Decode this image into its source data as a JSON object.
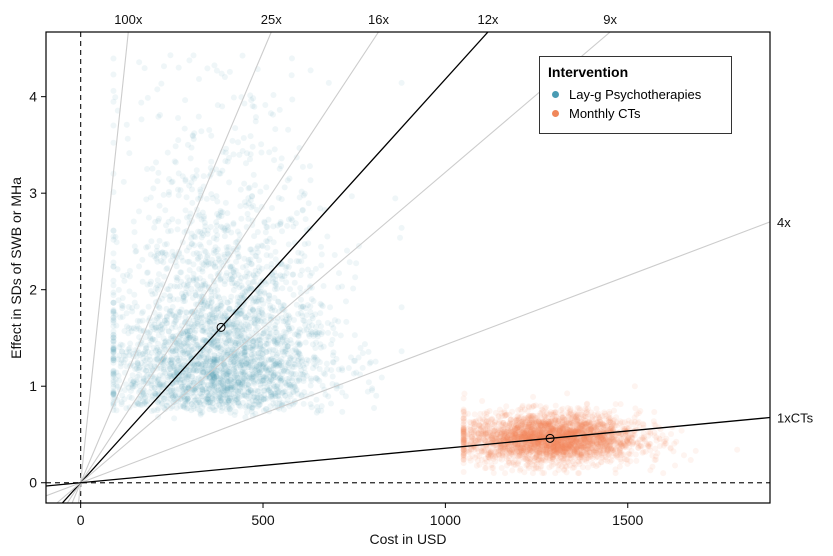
{
  "chart_data": {
    "type": "scatter",
    "xlabel": "Cost in USD",
    "ylabel": "Effect in SDs of SWB or MHa",
    "xlim": [
      -95,
      1890
    ],
    "ylim": [
      -0.21,
      4.67
    ],
    "xticks": [
      0,
      500,
      1000,
      1500
    ],
    "yticks": [
      0,
      1,
      2,
      3,
      4
    ],
    "grid": false,
    "reference_lines": {
      "vertical_x": 0,
      "horizontal_y": 0,
      "style": "dashed"
    },
    "base_slope_label": "1xCTs",
    "base_point": {
      "x": 1287,
      "y": 0.46
    },
    "ratio_lines": [
      {
        "label": "100x",
        "multiple": 100,
        "color": "#cccccc"
      },
      {
        "label": "25x",
        "multiple": 25,
        "color": "#cccccc"
      },
      {
        "label": "16x",
        "multiple": 16,
        "color": "#cccccc"
      },
      {
        "label": "12x",
        "multiple": 11.7,
        "color": "#000000"
      },
      {
        "label": "9x",
        "multiple": 9,
        "color": "#cccccc"
      },
      {
        "label": "4x",
        "multiple": 4,
        "color": "#cccccc"
      },
      {
        "label": "1xCTs",
        "multiple": 1,
        "color": "#000000"
      }
    ],
    "series": [
      {
        "name": "Lay-g Psychotherapies",
        "color": "#4a9bb3",
        "n": 3000,
        "mean_point": {
          "x": 385,
          "y": 1.61
        },
        "distribution": {
          "x_mean": 380,
          "x_sd": 150,
          "x_min": 90,
          "x_max": 880,
          "y_floor": 0.62,
          "y_log_mean": -0.25,
          "y_log_sd": 0.75,
          "y_max": 4.45
        }
      },
      {
        "name": "Monthly CTs",
        "color": "#f0875a",
        "n": 3000,
        "mean_point": {
          "x": 1287,
          "y": 0.46
        },
        "distribution": {
          "x_mean": 1290,
          "x_sd": 120,
          "x_min": 1050,
          "x_max": 1800,
          "y_mean": 0.46,
          "y_sd": 0.13,
          "y_min": 0.1,
          "y_max": 1.0
        }
      }
    ],
    "legend": {
      "title": "Intervention",
      "placement": "top-right"
    }
  }
}
